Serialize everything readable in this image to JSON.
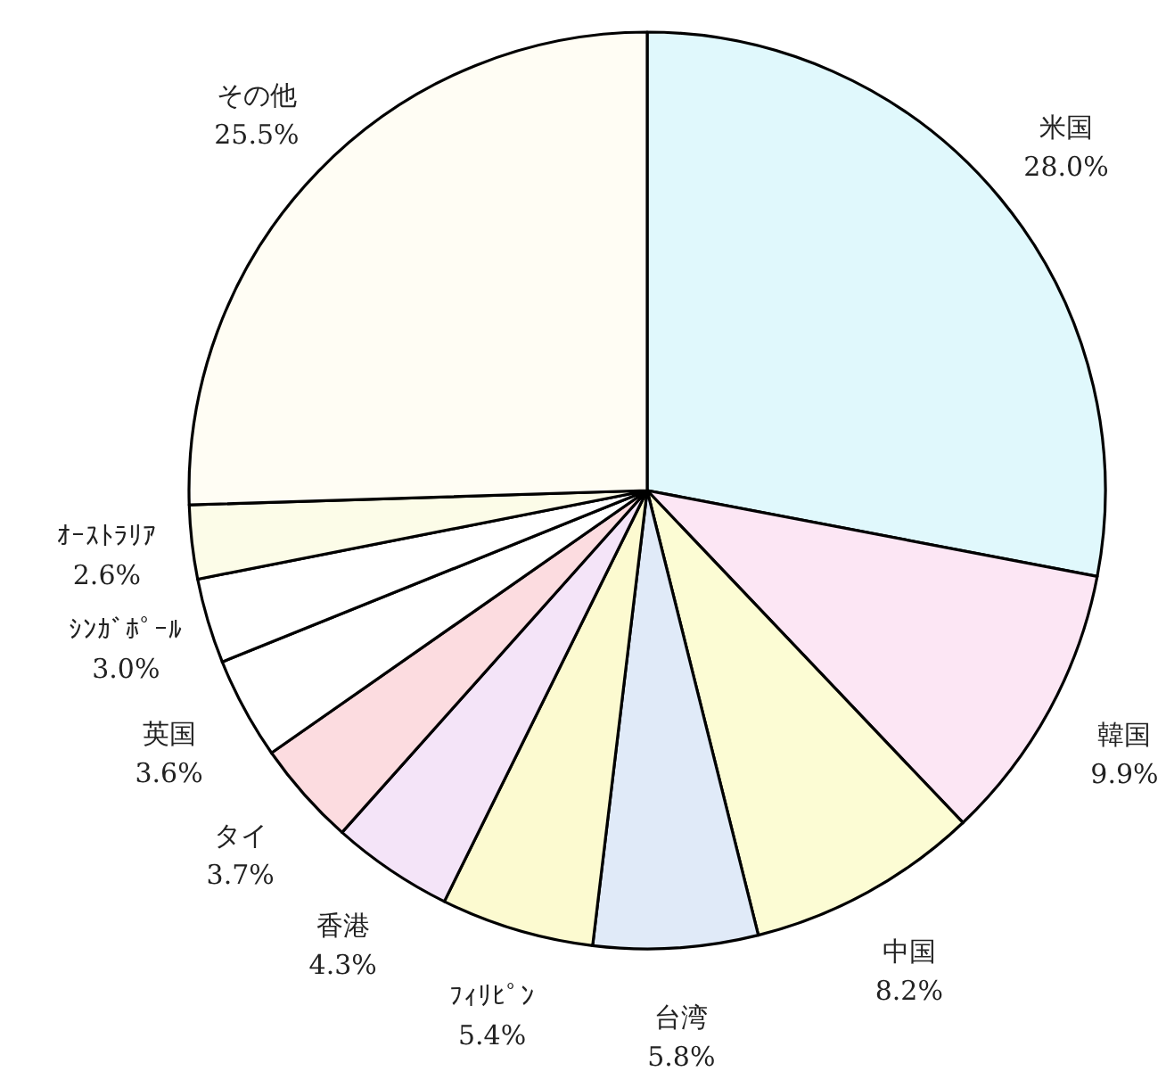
{
  "chart_data": {
    "type": "pie",
    "categories": [
      "米国",
      "韓国",
      "中国",
      "台湾",
      "ﾌｨﾘﾋﾟﾝ",
      "香港",
      "タイ",
      "英国",
      "ｼﾝｶﾞﾎﾟｰﾙ",
      "ｵｰｽﾄﾗﾘｱ",
      "その他"
    ],
    "values": [
      28.0,
      9.9,
      8.2,
      5.8,
      5.4,
      4.3,
      3.7,
      3.6,
      3.0,
      2.6,
      25.5
    ],
    "value_labels": [
      "28.0%",
      "9.9%",
      "8.2%",
      "5.8%",
      "5.4%",
      "4.3%",
      "3.7%",
      "3.6%",
      "3.0%",
      "2.6%",
      "25.5%"
    ],
    "colors": [
      "#e0f8fc",
      "#fce6f4",
      "#fcfcd4",
      "#e0eaf8",
      "#fcfad0",
      "#f4e4f8",
      "#fcdce0",
      "#ffffff",
      "#ffffff",
      "#fcfce8",
      "#fffdf4"
    ]
  }
}
